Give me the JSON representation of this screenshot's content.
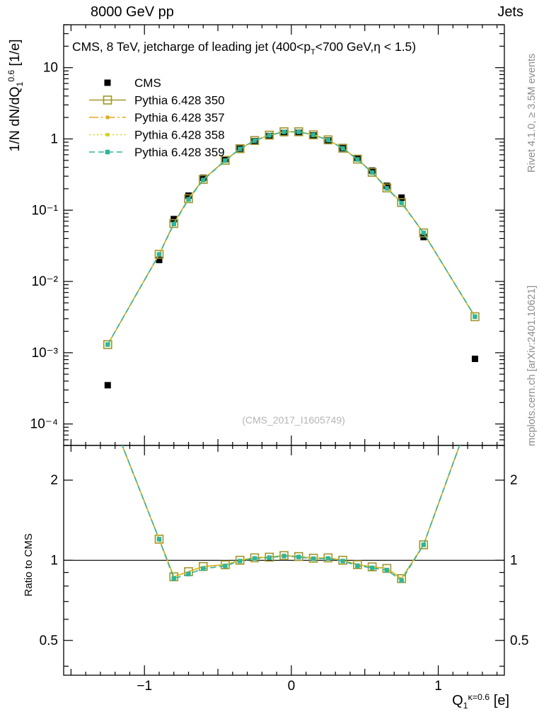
{
  "header": {
    "left": "8000 GeV pp",
    "right": "Jets"
  },
  "side_texts": {
    "top": "Rivet 4.1.0, ≥ 3.5M events",
    "bottom": "mcplots.cern.ch [arXiv:2401.10621]"
  },
  "watermark": "(CMS_2017_I1605749)",
  "chart_data": {
    "type": "line",
    "title_parts": [
      {
        "t": "CMS, 8 TeV, jetcharge of leading jet (400<p"
      },
      {
        "t": "T",
        "s": "sub"
      },
      {
        "t": "<700 GeV,η < 1.5)"
      }
    ],
    "ylabel_parts": [
      {
        "t": "1/N dN/dQ"
      },
      {
        "t": "1",
        "s": "sub"
      },
      {
        "t": "0.6",
        "s": "sup"
      },
      {
        "t": " [1/e]"
      }
    ],
    "ratio_ylabel": "Ratio to CMS",
    "xlabel_parts": [
      {
        "t": "Q"
      },
      {
        "t": "1",
        "s": "sub"
      },
      {
        "t": "κ=0.6",
        "s": "sup"
      },
      {
        "t": " [e]"
      }
    ],
    "legend_pos": "top-left",
    "grid": false,
    "axes": {
      "x": {
        "min": -1.55,
        "max": 1.45,
        "ticks": [
          [
            -1,
            "−1"
          ],
          [
            0,
            "0"
          ],
          [
            1,
            "1"
          ]
        ]
      },
      "y_main": {
        "scale": "log",
        "min": 5e-05,
        "max": 40,
        "ticks": [
          [
            10,
            "10"
          ],
          [
            1,
            "1"
          ],
          [
            0.1,
            "10⁻¹"
          ],
          [
            0.01,
            "10⁻²"
          ],
          [
            0.001,
            "10⁻³"
          ],
          [
            0.0001,
            "10⁻⁴"
          ]
        ]
      },
      "y_ratio": {
        "scale": "log",
        "min": 0.37,
        "max": 2.7,
        "ticks": [
          [
            0.5,
            "0.5"
          ],
          [
            1,
            "1"
          ],
          [
            2,
            "2"
          ]
        ],
        "minor": [
          0.4,
          0.6,
          0.7,
          0.8,
          0.9
        ]
      }
    },
    "ratio_reference": 1,
    "x": [
      -1.25,
      -0.9,
      -0.8,
      -0.7,
      -0.6,
      -0.45,
      -0.35,
      -0.25,
      -0.15,
      -0.05,
      0.05,
      0.15,
      0.25,
      0.35,
      0.45,
      0.55,
      0.65,
      0.75,
      0.9,
      1.25
    ],
    "series": [
      {
        "name": "CMS",
        "is_reference": true,
        "color": "#000000",
        "marker": "filled-square",
        "marker_size": 9,
        "line": "none",
        "values": [
          0.00035,
          0.02,
          0.075,
          0.16,
          0.285,
          0.52,
          0.73,
          0.93,
          1.1,
          1.21,
          1.22,
          1.12,
          0.95,
          0.74,
          0.54,
          0.36,
          0.22,
          0.15,
          0.042,
          0.00082
        ]
      },
      {
        "name": "Pythia 6.428 350",
        "color": "#a0952b",
        "marker": "open-square",
        "marker_size": 11,
        "line": "solid",
        "values": [
          0.0013,
          0.024,
          0.065,
          0.145,
          0.27,
          0.5,
          0.73,
          0.95,
          1.13,
          1.26,
          1.26,
          1.14,
          0.97,
          0.74,
          0.52,
          0.34,
          0.205,
          0.128,
          0.048,
          0.0032
        ]
      },
      {
        "name": "Pythia 6.428 357",
        "color": "#e3a91e",
        "marker": "none",
        "legend_marker": "filled-square",
        "legend_marker_size": 5,
        "line": "dashdot",
        "values": [
          0.0013,
          0.024,
          0.065,
          0.145,
          0.27,
          0.5,
          0.73,
          0.95,
          1.13,
          1.26,
          1.26,
          1.14,
          0.97,
          0.74,
          0.52,
          0.34,
          0.205,
          0.128,
          0.048,
          0.0032
        ]
      },
      {
        "name": "Pythia 6.428 358",
        "color": "#d9cf22",
        "marker": "none",
        "legend_marker": "filled-square",
        "legend_marker_size": 5,
        "line": "dotted",
        "values": [
          0.0013,
          0.024,
          0.065,
          0.145,
          0.27,
          0.5,
          0.73,
          0.95,
          1.13,
          1.26,
          1.26,
          1.14,
          0.97,
          0.74,
          0.52,
          0.34,
          0.205,
          0.128,
          0.048,
          0.0032
        ]
      },
      {
        "name": "Pythia 6.428 359",
        "color": "#31b598",
        "marker": "filled-square",
        "marker_size": 6.5,
        "line": "dashed",
        "values": [
          0.0013,
          0.024,
          0.064,
          0.142,
          0.265,
          0.495,
          0.725,
          0.945,
          1.125,
          1.255,
          1.255,
          1.135,
          0.965,
          0.735,
          0.515,
          0.337,
          0.202,
          0.126,
          0.048,
          0.0032
        ]
      }
    ]
  }
}
